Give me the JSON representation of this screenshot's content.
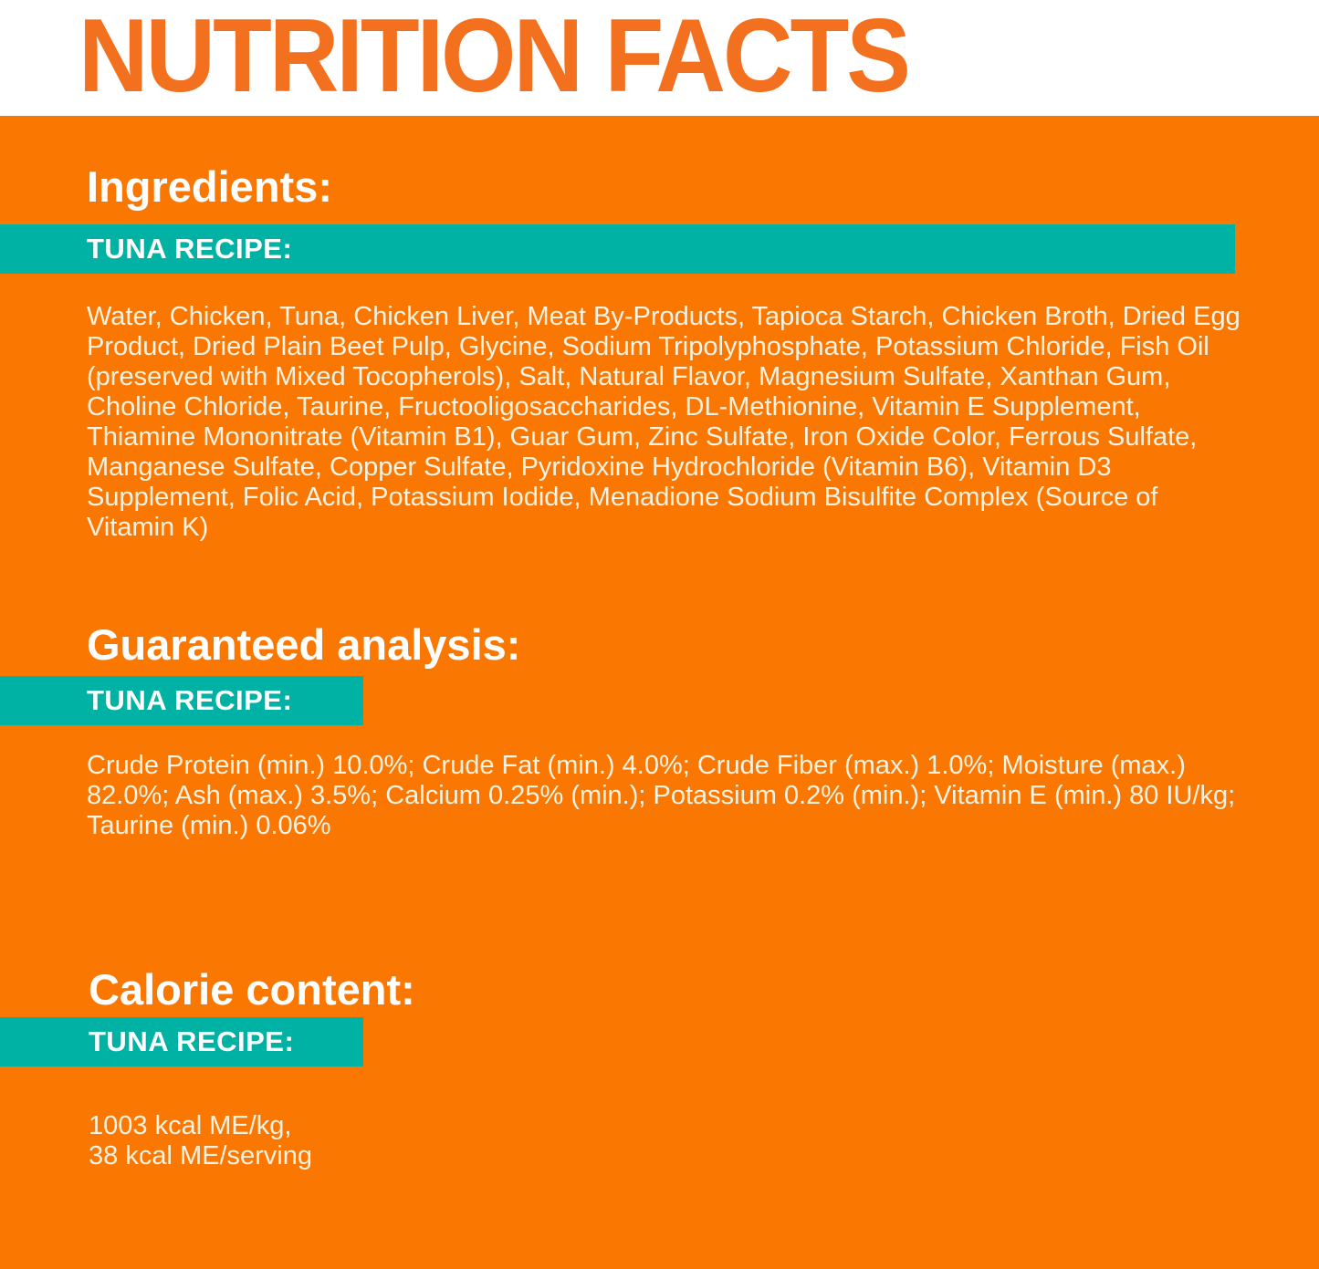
{
  "page_title": "NUTRITION FACTS",
  "colors": {
    "title_orange": "#F2701E",
    "background_orange": "#FA7702",
    "teal_bar": "#00B2A4",
    "heading_text": "#FFFFFF",
    "body_text": "#FAF3E4",
    "header_background": "#FFFFFF"
  },
  "sections": [
    {
      "heading": "Ingredients:",
      "recipe_label": "TUNA RECIPE:",
      "body": "Water, Chicken, Tuna, Chicken Liver, Meat By-Products, Tapioca Starch, Chicken Broth, Dried Egg Product, Dried Plain Beet Pulp, Glycine, Sodium Tripolyphosphate, Potassium Chloride, Fish Oil (preserved with Mixed Tocopherols), Salt, Natural Flavor, Magnesium Sulfate, Xanthan Gum, Choline Chloride, Taurine, Fructooligosaccharides, DL-Methionine, Vitamin E Supplement, Thiamine Mononitrate (Vitamin B1), Guar Gum, Zinc Sulfate, Iron Oxide Color, Ferrous Sulfate, Manganese Sulfate, Copper Sulfate, Pyridoxine Hydrochloride (Vitamin B6), Vitamin D3 Supplement, Folic Acid, Potassium Iodide, Menadione Sodium Bisulfite Complex (Source of Vitamin K)"
    },
    {
      "heading": "Guaranteed analysis:",
      "recipe_label": "TUNA RECIPE:",
      "body": "Crude Protein (min.) 10.0%; Crude Fat (min.) 4.0%; Crude Fiber (max.) 1.0%; Moisture (max.) 82.0%; Ash (max.) 3.5%; Calcium 0.25% (min.); Potassium 0.2% (min.); Vitamin E (min.) 80 IU/kg; Taurine (min.) 0.06%"
    },
    {
      "heading": "Calorie content:",
      "recipe_label": "TUNA RECIPE:",
      "lines": [
        "1003 kcal ME/kg,",
        "38 kcal ME/serving"
      ]
    }
  ]
}
